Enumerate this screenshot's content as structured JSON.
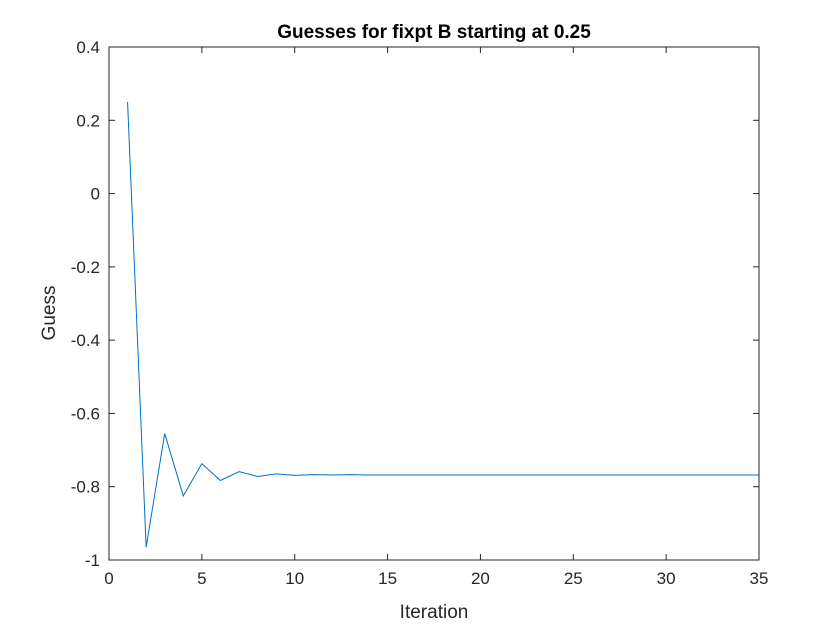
{
  "chart_data": {
    "type": "line",
    "title": "Guesses for fixpt B starting at 0.25",
    "xlabel": "Iteration",
    "ylabel": "Guess",
    "xlim": [
      0,
      35
    ],
    "ylim": [
      -1,
      0.4
    ],
    "xticks": [
      0,
      5,
      10,
      15,
      20,
      25,
      30,
      35
    ],
    "xtick_labels": [
      "0",
      "5",
      "10",
      "15",
      "20",
      "25",
      "30",
      "35"
    ],
    "yticks": [
      -1,
      -0.8,
      -0.6,
      -0.4,
      -0.2,
      0,
      0.2,
      0.4
    ],
    "ytick_labels": [
      "-1",
      "-0.8",
      "-0.6",
      "-0.4",
      "-0.2",
      "0",
      "0.2",
      "0.4"
    ],
    "grid": false,
    "legend": "none",
    "series": [
      {
        "color": "#0072bd",
        "x": [
          1,
          2,
          3,
          4,
          5,
          6,
          7,
          8,
          9,
          10,
          11,
          12,
          13,
          14,
          15,
          16,
          17,
          18,
          19,
          20,
          21,
          22,
          23,
          24,
          25,
          26,
          27,
          28,
          29,
          30,
          31,
          32,
          33,
          34,
          35
        ],
        "y": [
          0.25,
          -0.965,
          -0.655,
          -0.825,
          -0.737,
          -0.783,
          -0.759,
          -0.772,
          -0.765,
          -0.769,
          -0.767,
          -0.768,
          -0.767,
          -0.768,
          -0.768,
          -0.768,
          -0.768,
          -0.768,
          -0.768,
          -0.768,
          -0.768,
          -0.768,
          -0.768,
          -0.768,
          -0.768,
          -0.768,
          -0.768,
          -0.768,
          -0.768,
          -0.768,
          -0.768,
          -0.768,
          -0.768,
          -0.768,
          -0.768
        ]
      }
    ]
  }
}
